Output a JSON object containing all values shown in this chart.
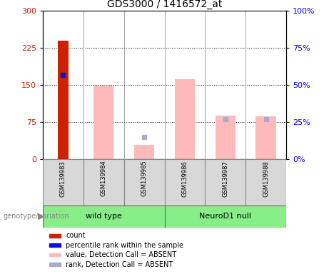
{
  "title": "GDS3000 / 1416572_at",
  "samples": [
    "GSM139983",
    "GSM139984",
    "GSM139985",
    "GSM139986",
    "GSM139987",
    "GSM139988"
  ],
  "count_values": [
    240,
    null,
    null,
    null,
    null,
    null
  ],
  "percentile_rank_values": [
    57,
    null,
    null,
    null,
    null,
    null
  ],
  "absent_value_bars": [
    null,
    148,
    28,
    162,
    88,
    87
  ],
  "absent_rank_markers": [
    null,
    null,
    15,
    null,
    27,
    27
  ],
  "left_ylim": [
    0,
    300
  ],
  "left_yticks": [
    0,
    75,
    150,
    225,
    300
  ],
  "right_ylim": [
    0,
    100
  ],
  "right_yticks": [
    0,
    25,
    50,
    75,
    100
  ],
  "right_yticklabels": [
    "0%",
    "25%",
    "50%",
    "75%",
    "100%"
  ],
  "count_color": "#cc2200",
  "percentile_color": "#1111cc",
  "absent_value_color": "#ffbbbb",
  "absent_rank_color": "#aaaacc",
  "green_color": "#88ee88",
  "legend_items": [
    {
      "label": "count",
      "color": "#cc2200"
    },
    {
      "label": "percentile rank within the sample",
      "color": "#1111cc"
    },
    {
      "label": "value, Detection Call = ABSENT",
      "color": "#ffbbbb"
    },
    {
      "label": "rank, Detection Call = ABSENT",
      "color": "#aaaacc"
    }
  ],
  "genotype_label": "genotype/variation",
  "wild_type_label": "wild type",
  "neurod1_label": "NeuroD1 null"
}
